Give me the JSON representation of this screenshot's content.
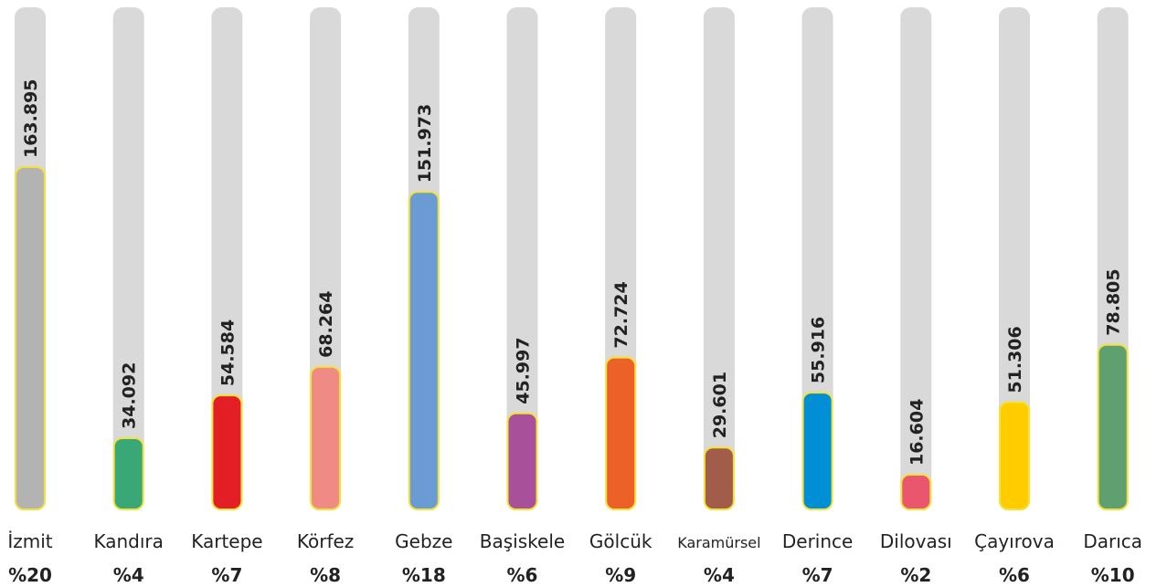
{
  "chart_data": {
    "type": "bar",
    "categories": [
      "İzmit",
      "Kandıra",
      "Kartepe",
      "Körfez",
      "Gebze",
      "Başiskele",
      "Gölcük",
      "Karamürsel",
      "Derince",
      "Dilovası",
      "Çayırova",
      "Darıca"
    ],
    "values": [
      163895,
      34092,
      54584,
      68264,
      151973,
      45997,
      72724,
      29601,
      55916,
      16604,
      51306,
      78805
    ],
    "value_labels": [
      "163.895",
      "34.092",
      "54.584",
      "68.264",
      "151.973",
      "45.997",
      "72.724",
      "29.601",
      "55.916",
      "16.604",
      "51.306",
      "78.805"
    ],
    "shares": [
      20,
      4,
      7,
      8,
      18,
      6,
      9,
      4,
      7,
      2,
      6,
      10
    ],
    "share_labels": [
      "%20",
      "%4",
      "%7",
      "%8",
      "%18",
      "%6",
      "%9",
      "%4",
      "%7",
      "%2",
      "%6",
      "%10"
    ],
    "colors": [
      "#b3b3b3",
      "#3aa876",
      "#e31e24",
      "#f08a84",
      "#6a9bd3",
      "#a8519a",
      "#eb6127",
      "#a25d4a",
      "#008fd5",
      "#e9566e",
      "#ffcc00",
      "#5ea070"
    ],
    "ylim": [
      0,
      240400
    ]
  }
}
